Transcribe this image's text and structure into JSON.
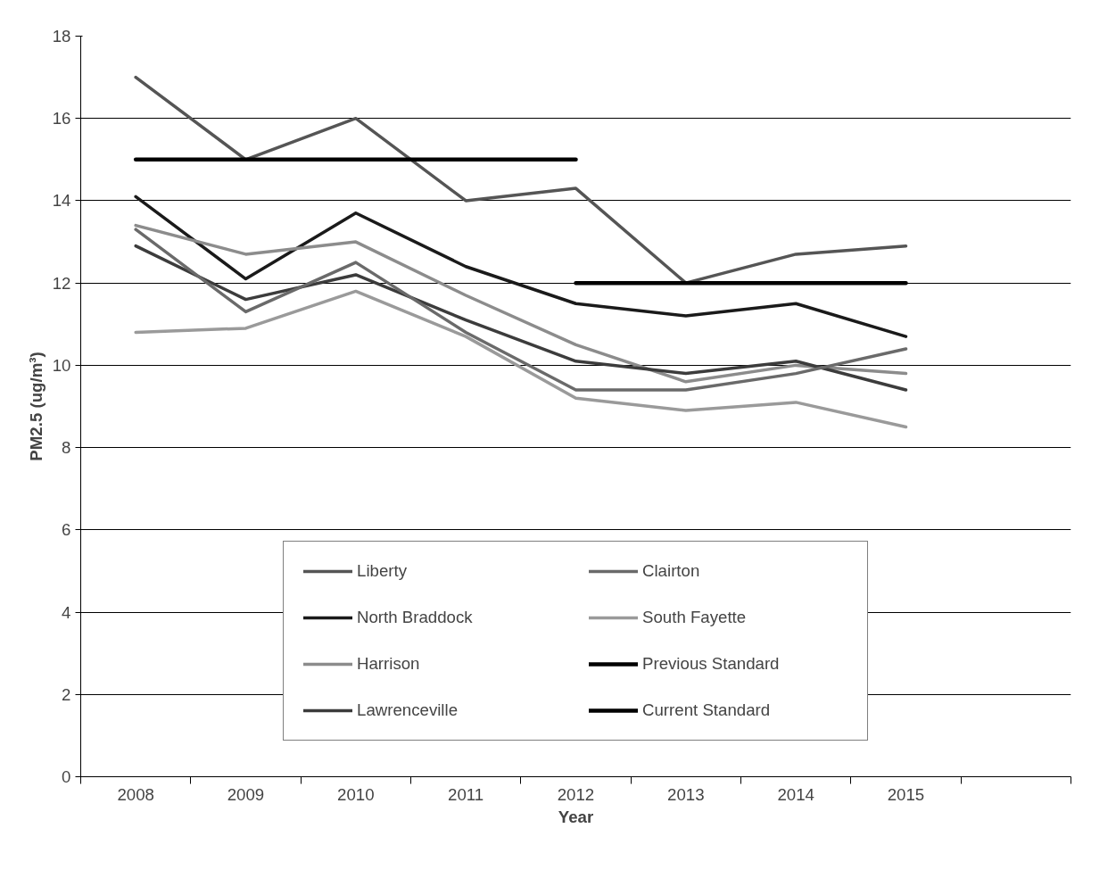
{
  "chart_data": {
    "type": "line",
    "xlabel": "Year",
    "ylabel": "PM2.5 (ug/m³)",
    "categories": [
      "2008",
      "2009",
      "2010",
      "2011",
      "2012",
      "2013",
      "2014",
      "2015",
      null
    ],
    "series": [
      {
        "name": "Liberty",
        "color": "#555555",
        "values": [
          17.0,
          15.0,
          16.0,
          14.0,
          14.3,
          12.0,
          12.7,
          12.9,
          null
        ]
      },
      {
        "name": "North Braddock",
        "color": "#1a1a1a",
        "values": [
          14.1,
          12.1,
          13.7,
          12.4,
          11.5,
          11.2,
          11.5,
          10.7,
          null
        ]
      },
      {
        "name": "Harrison",
        "color": "#8c8c8c",
        "values": [
          13.4,
          12.7,
          13.0,
          11.7,
          10.5,
          9.6,
          10.0,
          9.8,
          null
        ]
      },
      {
        "name": "Lawrenceville",
        "color": "#3c3c3c",
        "values": [
          12.9,
          11.6,
          12.2,
          11.1,
          10.1,
          9.8,
          10.1,
          9.4,
          null
        ]
      },
      {
        "name": "Clairton",
        "color": "#6a6a6a",
        "values": [
          13.3,
          11.3,
          12.5,
          10.8,
          9.4,
          9.4,
          9.8,
          10.4,
          null
        ]
      },
      {
        "name": "South Fayette",
        "color": "#9a9a9a",
        "values": [
          10.8,
          10.9,
          11.8,
          10.7,
          9.2,
          8.9,
          9.1,
          8.5,
          null
        ]
      },
      {
        "name": "Previous Standard",
        "color": "#000000",
        "values": [
          15,
          15,
          15,
          15,
          15,
          null,
          null,
          null,
          null
        ]
      },
      {
        "name": "Current Standard",
        "color": "#000000",
        "values": [
          null,
          null,
          null,
          null,
          12,
          12,
          12,
          12,
          null
        ]
      }
    ],
    "ylim": [
      0,
      18
    ],
    "yticks": [
      0,
      2,
      4,
      6,
      8,
      10,
      12,
      14,
      16,
      18
    ],
    "grid": "y",
    "legend": "bottom",
    "marker": "none",
    "line_style": "solid"
  }
}
